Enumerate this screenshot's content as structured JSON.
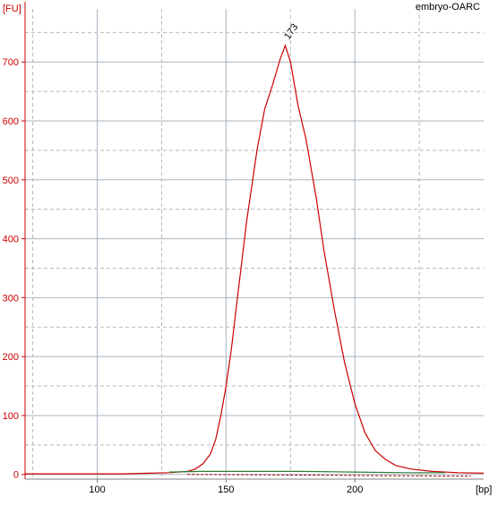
{
  "chart_data": {
    "type": "line",
    "title": "embryo-OARC",
    "xlabel": "[bp]",
    "ylabel": "[FU]",
    "xlim": [
      72,
      250
    ],
    "ylim": [
      -8,
      790
    ],
    "x_ticks": [
      100,
      150,
      200
    ],
    "y_ticks": [
      0,
      100,
      200,
      300,
      400,
      500,
      600,
      700
    ],
    "grid": true,
    "peak_label": "173",
    "peak": {
      "x": 173,
      "y": 728
    },
    "series": [
      {
        "color": "#cc0000",
        "x": [
          72,
          110,
          120,
          128,
          135,
          138,
          141,
          144,
          146,
          148,
          150,
          152,
          155,
          158,
          162,
          165,
          168,
          171,
          173,
          175,
          178,
          181,
          185,
          188,
          192,
          196,
          200,
          204,
          208,
          212,
          216,
          222,
          230,
          240,
          250
        ],
        "y": [
          1,
          1,
          2,
          3,
          5,
          9,
          18,
          35,
          60,
          100,
          150,
          210,
          320,
          430,
          550,
          620,
          660,
          705,
          728,
          700,
          625,
          570,
          470,
          380,
          280,
          190,
          120,
          70,
          40,
          25,
          15,
          9,
          5,
          3,
          2
        ]
      },
      {
        "color": "#2e7d32",
        "x": [
          128,
          140,
          160,
          180,
          200,
          220,
          235
        ],
        "y": [
          4,
          5,
          5,
          5,
          4,
          3,
          3
        ]
      }
    ],
    "baseline_dashed": {
      "color": "#990000",
      "x": [
        135,
        245
      ],
      "y": [
        0,
        -3
      ]
    }
  }
}
